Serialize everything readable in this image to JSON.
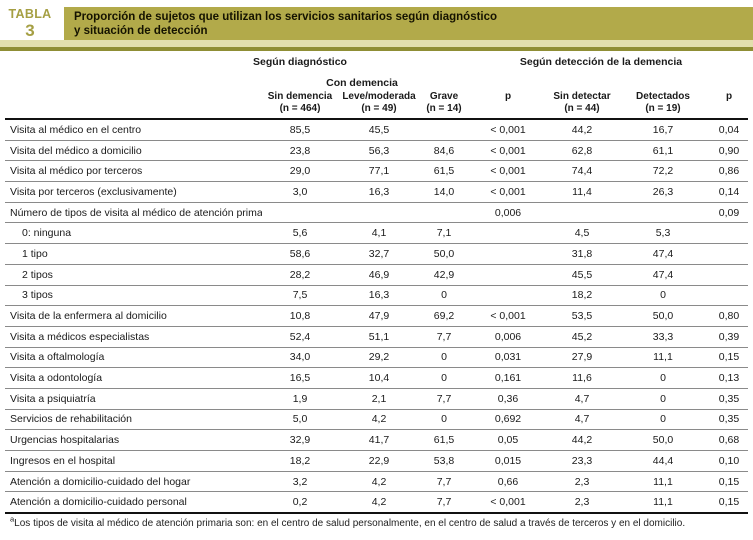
{
  "header": {
    "kicker": "TABLA",
    "number": "3",
    "title_line1": "Proporción de sujetos que utilizan los servicios sanitarios según diagnóstico",
    "title_line2": "y situación de detección"
  },
  "colors": {
    "title_bar_bg": "#b2aa4a",
    "kicker_text": "#a59f43",
    "pale_band": "#e2dfae",
    "olive_rule": "#8f8e35"
  },
  "table": {
    "group_headers": {
      "diagnostico": "Según diagnóstico",
      "deteccion": "Según detección de la demencia",
      "con_demencia": "Con demencia"
    },
    "columns": [
      {
        "label": "Sin demencia",
        "n": "(n = 464)"
      },
      {
        "label": "Leve/moderada",
        "n": "(n = 49)"
      },
      {
        "label": "Grave",
        "n": "(n = 14)"
      },
      {
        "label": "p",
        "n": ""
      },
      {
        "label": "Sin detectar",
        "n": "(n = 44)"
      },
      {
        "label": "Detectados",
        "n": "(n = 19)"
      },
      {
        "label": "p",
        "n": ""
      }
    ],
    "rows": [
      {
        "label": "Visita al médico en el centro",
        "indent": false,
        "sup": "",
        "values": [
          "85,5",
          "45,5",
          "",
          "< 0,001",
          "44,2",
          "16,7",
          "0,04"
        ]
      },
      {
        "label": "Visita del médico a domicilio",
        "indent": false,
        "sup": "",
        "values": [
          "23,8",
          "56,3",
          "84,6",
          "< 0,001",
          "62,8",
          "61,1",
          "0,90"
        ]
      },
      {
        "label": "Visita al médico por terceros",
        "indent": false,
        "sup": "",
        "values": [
          "29,0",
          "77,1",
          "61,5",
          "< 0,001",
          "74,4",
          "72,2",
          "0,86"
        ]
      },
      {
        "label": "Visita por terceros (exclusivamente)",
        "indent": false,
        "sup": "",
        "values": [
          "3,0",
          "16,3",
          "14,0",
          "< 0,001",
          "11,4",
          "26,3",
          "0,14"
        ]
      },
      {
        "label": "Número de tipos de visita al médico de atención primaria",
        "indent": false,
        "sup": "a",
        "values": [
          "",
          "",
          "",
          "0,006",
          "",
          "",
          "0,09"
        ]
      },
      {
        "label": "0: ninguna",
        "indent": true,
        "sup": "",
        "values": [
          "5,6",
          "4,1",
          "7,1",
          "",
          "4,5",
          "5,3",
          ""
        ]
      },
      {
        "label": "1 tipo",
        "indent": true,
        "sup": "",
        "values": [
          "58,6",
          "32,7",
          "50,0",
          "",
          "31,8",
          "47,4",
          ""
        ]
      },
      {
        "label": "2 tipos",
        "indent": true,
        "sup": "",
        "values": [
          "28,2",
          "46,9",
          "42,9",
          "",
          "45,5",
          "47,4",
          ""
        ]
      },
      {
        "label": "3 tipos",
        "indent": true,
        "sup": "",
        "values": [
          "7,5",
          "16,3",
          "0",
          "",
          "18,2",
          "0",
          ""
        ]
      },
      {
        "label": "Visita de la enfermera al domicilio",
        "indent": false,
        "sup": "",
        "values": [
          "10,8",
          "47,9",
          "69,2",
          "< 0,001",
          "53,5",
          "50,0",
          "0,80"
        ]
      },
      {
        "label": "Visita a médicos especialistas",
        "indent": false,
        "sup": "",
        "values": [
          "52,4",
          "51,1",
          "7,7",
          "0,006",
          "45,2",
          "33,3",
          "0,39"
        ]
      },
      {
        "label": "Visita a oftalmología",
        "indent": false,
        "sup": "",
        "values": [
          "34,0",
          "29,2",
          "0",
          "0,031",
          "27,9",
          "11,1",
          "0,15"
        ]
      },
      {
        "label": "Visita a odontología",
        "indent": false,
        "sup": "",
        "values": [
          "16,5",
          "10,4",
          "0",
          "0,161",
          "11,6",
          "0",
          "0,13"
        ]
      },
      {
        "label": "Visita a psiquiatría",
        "indent": false,
        "sup": "",
        "values": [
          "1,9",
          "2,1",
          "7,7",
          "0,36",
          "4,7",
          "0",
          "0,35"
        ]
      },
      {
        "label": "Servicios de rehabilitación",
        "indent": false,
        "sup": "",
        "values": [
          "5,0",
          "4,2",
          "0",
          "0,692",
          "4,7",
          "0",
          "0,35"
        ]
      },
      {
        "label": "Urgencias hospitalarias",
        "indent": false,
        "sup": "",
        "values": [
          "32,9",
          "41,7",
          "61,5",
          "0,05",
          "44,2",
          "50,0",
          "0,68"
        ]
      },
      {
        "label": "Ingresos en el hospital",
        "indent": false,
        "sup": "",
        "values": [
          "18,2",
          "22,9",
          "53,8",
          "0,015",
          "23,3",
          "44,4",
          "0,10"
        ]
      },
      {
        "label": "Atención a domicilio-cuidado del hogar",
        "indent": false,
        "sup": "",
        "values": [
          "3,2",
          "4,2",
          "7,7",
          "0,66",
          "2,3",
          "11,1",
          "0,15"
        ]
      },
      {
        "label": "Atención a domicilio-cuidado personal",
        "indent": false,
        "sup": "",
        "values": [
          "0,2",
          "4,2",
          "7,7",
          "< 0,001",
          "2,3",
          "11,1",
          "0,15"
        ]
      }
    ]
  },
  "footnote": {
    "sup": "a",
    "text": "Los tipos de visita al médico de atención primaria son: en el centro de salud personalmente, en el centro de salud a través de terceros y en el domicilio."
  }
}
